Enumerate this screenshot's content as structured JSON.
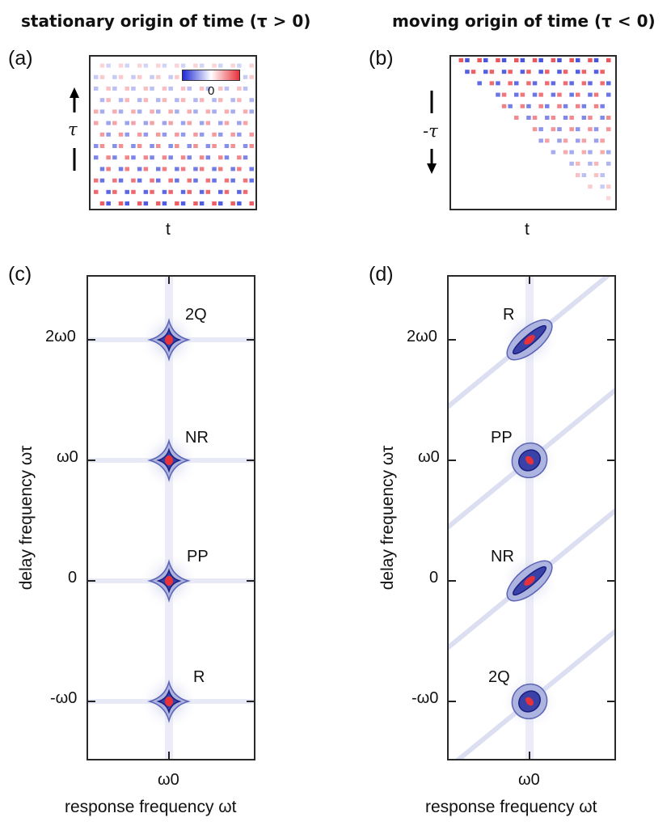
{
  "titles": {
    "left": "stationary origin of time (τ > 0)",
    "right": "moving origin of time (τ < 0)"
  },
  "panels": {
    "a": {
      "label": "(a)",
      "xlabel": "t",
      "ylabel": "τ",
      "colorbar_label": "0"
    },
    "b": {
      "label": "(b)",
      "xlabel": "t",
      "ylabel": "-τ"
    },
    "c": {
      "label": "(c)",
      "xlabel": "response frequency ωt",
      "ylabel": "delay frequency ωτ",
      "xtick": "ω0",
      "yticks": [
        "2ω0",
        "ω0",
        "0",
        "-ω0"
      ],
      "peaks": [
        "2Q",
        "NR",
        "PP",
        "R"
      ]
    },
    "d": {
      "label": "(d)",
      "xlabel": "response frequency ωt",
      "ylabel": "delay frequency ωτ",
      "xtick": "ω0",
      "yticks": [
        "2ω0",
        "ω0",
        "0",
        "-ω0"
      ],
      "peaks": [
        "R",
        "PP",
        "NR",
        "2Q"
      ]
    }
  },
  "colors": {
    "positive": "#e8323a",
    "negative": "#2230d8",
    "contour": "#1a1f80",
    "halo": "#c9cde8"
  }
}
